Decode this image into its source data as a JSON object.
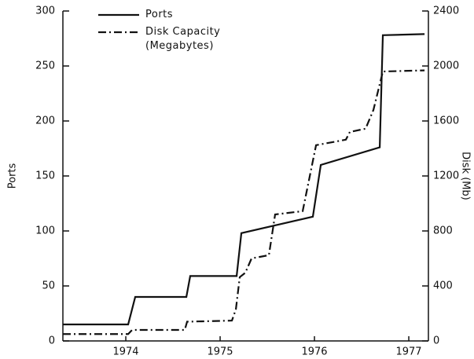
{
  "chart_data": {
    "type": "line",
    "xlabel": null,
    "ylabel": "Ports",
    "y2label": "Disk (Mb)",
    "xlim": [
      1973.833,
      1977.708
    ],
    "xticks": [
      {
        "value": 1974.5,
        "label": "1974"
      },
      {
        "value": 1975.5,
        "label": "1975"
      },
      {
        "value": 1976.5,
        "label": "1976"
      },
      {
        "value": 1977.5,
        "label": "1977"
      }
    ],
    "ylim": [
      0,
      300
    ],
    "yticks": [
      0,
      50,
      100,
      150,
      200,
      250,
      300
    ],
    "y2lim": [
      0,
      2400
    ],
    "y2ticks": [
      0,
      400,
      800,
      1200,
      1600,
      2000,
      2400
    ],
    "series": [
      {
        "name": "Ports",
        "color": "#111111",
        "style": "solid",
        "x": [
          1973.833,
          1974.525,
          1974.6,
          1975.142,
          1975.183,
          1975.675,
          1975.725,
          1976.483,
          1976.567,
          1977.192,
          1977.225,
          1977.667
        ],
        "values": [
          15,
          15,
          40,
          40,
          59,
          59,
          98,
          113,
          160,
          176,
          278,
          279
        ]
      },
      {
        "name": "Disk Capacity\n(Megabytes)",
        "color": "#111111",
        "style": "dashdot",
        "axis": "y2",
        "x": [
          1973.833,
          1974.525,
          1974.567,
          1975.125,
          1975.15,
          1975.625,
          1975.667,
          1975.708,
          1975.767,
          1975.833,
          1976.017,
          1976.083,
          1976.375,
          1976.517,
          1976.833,
          1976.875,
          1977.042,
          1977.125,
          1977.225,
          1977.667
        ],
        "values": [
          50,
          50,
          80,
          80,
          140,
          148,
          230,
          464,
          496,
          600,
          624,
          920,
          944,
          1424,
          1464,
          1520,
          1544,
          1680,
          1960,
          1968
        ]
      }
    ]
  }
}
